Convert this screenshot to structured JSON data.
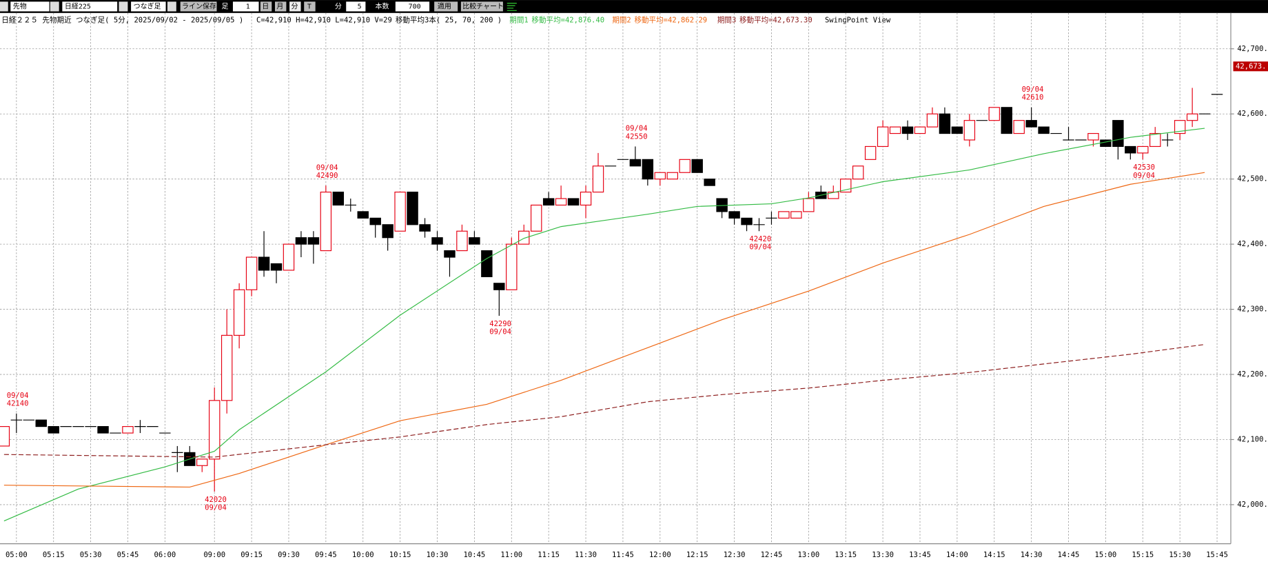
{
  "toolbar": {
    "market": "先物",
    "index": "日経225",
    "bar_type": "つなぎ足",
    "save_line": "ライン保存",
    "bar_label": "足",
    "bar_box": "1",
    "day": "日",
    "month": "月",
    "minute": "分",
    "tick": "T",
    "interval_label": "分",
    "interval": "5",
    "count_label": "本数",
    "count": "700",
    "apply": "適用",
    "compare": "比較チャート"
  },
  "header": {
    "title": "日経２２５ 先物期近 つなぎ足( 5分, 2025/09/02 - 2025/09/05 )",
    "ohlcv": "C=42,910 H=42,910 L=42,910 V=29",
    "ma_summary": "移動平均3本( 25, 70, 200 )",
    "view": "SwingPoint View"
  },
  "chart_data": {
    "type": "candlestick",
    "categories": [
      null,
      "05:00",
      null,
      null,
      "05:15",
      null,
      null,
      "05:30",
      null,
      null,
      "05:45",
      null,
      null,
      "06:00",
      null,
      null,
      null,
      "09:00",
      null,
      null,
      "09:15",
      null,
      null,
      "09:30",
      null,
      null,
      "09:45",
      null,
      null,
      "10:00",
      null,
      null,
      "10:15",
      null,
      null,
      "10:30",
      null,
      null,
      "10:45",
      null,
      null,
      "11:00",
      null,
      null,
      "11:15",
      null,
      null,
      "11:30",
      null,
      null,
      "11:45",
      null,
      null,
      "12:00",
      null,
      null,
      "12:15",
      null,
      null,
      "12:30",
      null,
      null,
      "12:45",
      null,
      null,
      "13:00",
      null,
      null,
      "13:15",
      null,
      null,
      "13:30",
      null,
      null,
      "13:45",
      null,
      null,
      "14:00",
      null,
      null,
      "14:15",
      null,
      null,
      "14:30",
      null,
      null,
      "14:45",
      null,
      null,
      "15:00",
      null,
      null,
      "15:15",
      null,
      null,
      "15:30",
      null,
      null,
      "15:45"
    ],
    "open": [
      42090,
      42130,
      42130,
      42130,
      42120,
      42120,
      42120,
      42120,
      42120,
      42110,
      42110,
      42120,
      42120,
      42110,
      42080,
      42080,
      42060,
      42070,
      42160,
      42260,
      42330,
      42380,
      42370,
      42360,
      42410,
      42410,
      42390,
      42480,
      42460,
      42450,
      42440,
      42430,
      42420,
      42480,
      42430,
      42410,
      42390,
      42390,
      42410,
      42390,
      42340,
      42330,
      42400,
      42420,
      42470,
      42460,
      42470,
      42460,
      42480,
      42520,
      42530,
      42530,
      42530,
      42500,
      42500,
      42510,
      42530,
      42500,
      42470,
      42450,
      42440,
      42430,
      42440,
      42440,
      42440,
      42450,
      42480,
      42470,
      42480,
      42500,
      42530,
      42550,
      42570,
      42580,
      42570,
      42580,
      42600,
      42580,
      42560,
      42590,
      42590,
      42610,
      42570,
      42590,
      42580,
      42570,
      42560,
      42560,
      42560,
      42560,
      42590,
      42550,
      42540,
      42550,
      42560,
      42570,
      42590,
      42600,
      42630
    ],
    "high": [
      42120,
      42140,
      42130,
      42130,
      42120,
      42120,
      42120,
      42120,
      42120,
      42110,
      42120,
      42130,
      42120,
      42110,
      42090,
      42090,
      42070,
      42180,
      42300,
      42340,
      42380,
      42420,
      42370,
      42400,
      42420,
      42420,
      42490,
      42480,
      42470,
      42450,
      42440,
      42430,
      42480,
      42480,
      42440,
      42420,
      42390,
      42430,
      42420,
      42390,
      42340,
      42410,
      42430,
      42460,
      42480,
      42490,
      42470,
      42490,
      42540,
      42520,
      42530,
      42550,
      42530,
      42510,
      42510,
      42530,
      42530,
      42500,
      42470,
      42450,
      42440,
      42440,
      42450,
      42450,
      42450,
      42480,
      42490,
      42490,
      42500,
      42520,
      42550,
      42590,
      42580,
      42590,
      42580,
      42610,
      42610,
      42580,
      42600,
      42590,
      42610,
      42610,
      42590,
      42610,
      42580,
      42570,
      42580,
      42560,
      42570,
      42560,
      42590,
      42550,
      42550,
      42580,
      42570,
      42590,
      42640,
      42600,
      42630
    ],
    "low": [
      42090,
      42110,
      42130,
      42120,
      42110,
      42120,
      42120,
      42120,
      42110,
      42110,
      42110,
      42110,
      42120,
      42110,
      42050,
      42060,
      42050,
      42020,
      42140,
      42240,
      42320,
      42350,
      42340,
      42360,
      42380,
      42370,
      42390,
      42460,
      42450,
      42440,
      42410,
      42390,
      42420,
      42430,
      42410,
      42390,
      42350,
      42390,
      42400,
      42350,
      42290,
      42330,
      42400,
      42420,
      42460,
      42460,
      42460,
      42440,
      42480,
      42520,
      42530,
      42520,
      42490,
      42490,
      42500,
      42510,
      42510,
      42490,
      42440,
      42430,
      42420,
      42420,
      42430,
      42440,
      42440,
      42450,
      42470,
      42470,
      42480,
      42500,
      42530,
      42550,
      42570,
      42560,
      42570,
      42580,
      42570,
      42570,
      42550,
      42590,
      42590,
      42570,
      42570,
      42580,
      42570,
      42570,
      42560,
      42560,
      42550,
      42550,
      42530,
      42530,
      42530,
      42550,
      42550,
      42560,
      42580,
      42600,
      42630
    ],
    "close": [
      42120,
      42130,
      42130,
      42120,
      42110,
      42120,
      42120,
      42120,
      42110,
      42110,
      42120,
      42120,
      42120,
      42110,
      42080,
      42060,
      42070,
      42160,
      42260,
      42330,
      42380,
      42360,
      42360,
      42400,
      42400,
      42400,
      42480,
      42460,
      42460,
      42440,
      42430,
      42410,
      42480,
      42430,
      42420,
      42400,
      42380,
      42420,
      42400,
      42350,
      42330,
      42400,
      42420,
      42460,
      42460,
      42470,
      42460,
      42480,
      42520,
      42520,
      42530,
      42520,
      42500,
      42510,
      42510,
      42530,
      42510,
      42490,
      42450,
      42440,
      42430,
      42430,
      42440,
      42450,
      42450,
      42470,
      42470,
      42480,
      42500,
      42520,
      42550,
      42580,
      42580,
      42570,
      42580,
      42600,
      42570,
      42570,
      42590,
      42590,
      42610,
      42570,
      42590,
      42580,
      42570,
      42570,
      42560,
      42560,
      42570,
      42550,
      42550,
      42540,
      42550,
      42570,
      42560,
      42590,
      42600,
      42600,
      42630
    ],
    "up_color": "#e60012",
    "down_color": "#000000",
    "series": [
      {
        "name": "期間1",
        "legend_label": "移動平均=42,876.40",
        "color": "#33bb44",
        "dash": false,
        "x": [
          0,
          6,
          13,
          17,
          19,
          26,
          32,
          39,
          42,
          45,
          52,
          56,
          62,
          65,
          71,
          78,
          84,
          91,
          97
        ],
        "values": [
          41975,
          42024,
          42058,
          42082,
          42115,
          42204,
          42291,
          42378,
          42409,
          42427,
          42446,
          42458,
          42462,
          42471,
          42496,
          42514,
          42539,
          42564,
          42578
        ]
      },
      {
        "name": "期間2",
        "legend_label": "移動平均=42,862.29",
        "color": "#ee6611",
        "dash": false,
        "x": [
          0,
          15,
          19,
          26,
          32,
          39,
          45,
          52,
          58,
          65,
          71,
          78,
          84,
          91,
          97
        ],
        "values": [
          42030,
          42027,
          42048,
          42092,
          42129,
          42154,
          42191,
          42241,
          42284,
          42328,
          42371,
          42415,
          42458,
          42492,
          42510
        ]
      },
      {
        "name": "期間3",
        "legend_label": "移動平均=42,673.30",
        "color": "#8b1a1a",
        "dash": true,
        "x": [
          0,
          17,
          26,
          32,
          39,
          45,
          52,
          58,
          65,
          71,
          78,
          84,
          91,
          97
        ],
        "values": [
          42077,
          42073,
          42092,
          42104,
          42123,
          42135,
          42158,
          42169,
          42179,
          42191,
          42203,
          42216,
          42231,
          42246
        ]
      }
    ],
    "annotations": [
      {
        "index": 1,
        "date": "09/04",
        "price": 42140,
        "position": "above"
      },
      {
        "index": 17,
        "date": "09/04",
        "price": 42020,
        "position": "below"
      },
      {
        "index": 26,
        "date": "09/04",
        "price": 42490,
        "position": "above"
      },
      {
        "index": 40,
        "date": "09/04",
        "price": 42290,
        "position": "below"
      },
      {
        "index": 51,
        "date": "09/04",
        "price": 42550,
        "position": "above"
      },
      {
        "index": 61,
        "date": "09/04",
        "price": 42420,
        "position": "below"
      },
      {
        "index": 83,
        "date": "09/04",
        "price": 42610,
        "position": "above"
      },
      {
        "index": 92,
        "date": "09/04",
        "price": 42530,
        "position": "below"
      }
    ],
    "annotation_color": "#e60012",
    "price_tag": {
      "value": 42673,
      "label": "42,673."
    },
    "ylim": [
      41940,
      42755
    ],
    "yticks": [
      {
        "value": 42000,
        "label": "42,000."
      },
      {
        "value": 42100,
        "label": "42,100."
      },
      {
        "value": 42200,
        "label": "42,200."
      },
      {
        "value": 42300,
        "label": "42,300."
      },
      {
        "value": 42400,
        "label": "42,400."
      },
      {
        "value": 42500,
        "label": "42,500."
      },
      {
        "value": 42600,
        "label": "42,600."
      },
      {
        "value": 42700,
        "label": "42,700."
      }
    ],
    "grid": true
  }
}
